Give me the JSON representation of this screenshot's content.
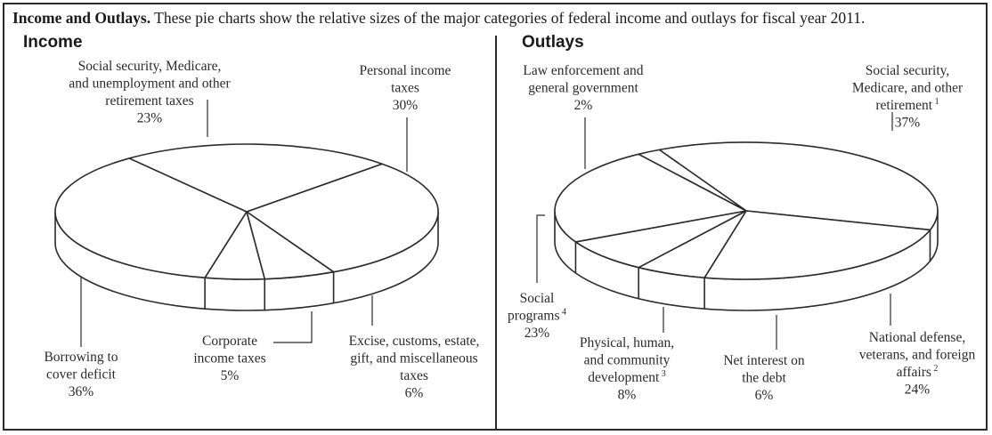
{
  "caption": {
    "bold": "Income and Outlays.",
    "text": " These pie charts show the relative sizes of the major categories of federal income and outlays for fiscal year 2011."
  },
  "chart_data": [
    {
      "type": "pie",
      "title": "Income",
      "slices": [
        {
          "label_lines": [
            "Personal income",
            "taxes"
          ],
          "value": 30,
          "value_text": "30%"
        },
        {
          "label_lines": [
            "Social security, Medicare,",
            "and unemployment and other",
            "retirement taxes"
          ],
          "value": 23,
          "value_text": "23%"
        },
        {
          "label_lines": [
            "Borrowing to",
            "cover deficit"
          ],
          "value": 36,
          "value_text": "36%"
        },
        {
          "label_lines": [
            "Corporate",
            "income taxes"
          ],
          "value": 5,
          "value_text": "5%"
        },
        {
          "label_lines": [
            "Excise, customs, estate,",
            "gift, and miscellaneous",
            "taxes"
          ],
          "value": 6,
          "value_text": "6%"
        }
      ]
    },
    {
      "type": "pie",
      "title": "Outlays",
      "slices": [
        {
          "label_lines": [
            "Law enforcement and",
            "general government"
          ],
          "value": 2,
          "value_text": "2%",
          "footnote": ""
        },
        {
          "label_lines": [
            "Social security,",
            "Medicare, and other",
            "retirement"
          ],
          "value": 37,
          "value_text": "37%",
          "footnote": "1"
        },
        {
          "label_lines": [
            "National defense,",
            "veterans, and foreign",
            "affairs"
          ],
          "value": 24,
          "value_text": "24%",
          "footnote": "2"
        },
        {
          "label_lines": [
            "Net interest on",
            "the debt"
          ],
          "value": 6,
          "value_text": "6%",
          "footnote": ""
        },
        {
          "label_lines": [
            "Physical, human,",
            "and community",
            "development"
          ],
          "value": 8,
          "value_text": "8%",
          "footnote": "3"
        },
        {
          "label_lines": [
            "Social",
            "programs"
          ],
          "value": 23,
          "value_text": "23%",
          "footnote": "4"
        }
      ]
    }
  ],
  "colors": {
    "line": "#2b2b2b",
    "fill": "#ffffff",
    "text": "#2a2a2a"
  }
}
